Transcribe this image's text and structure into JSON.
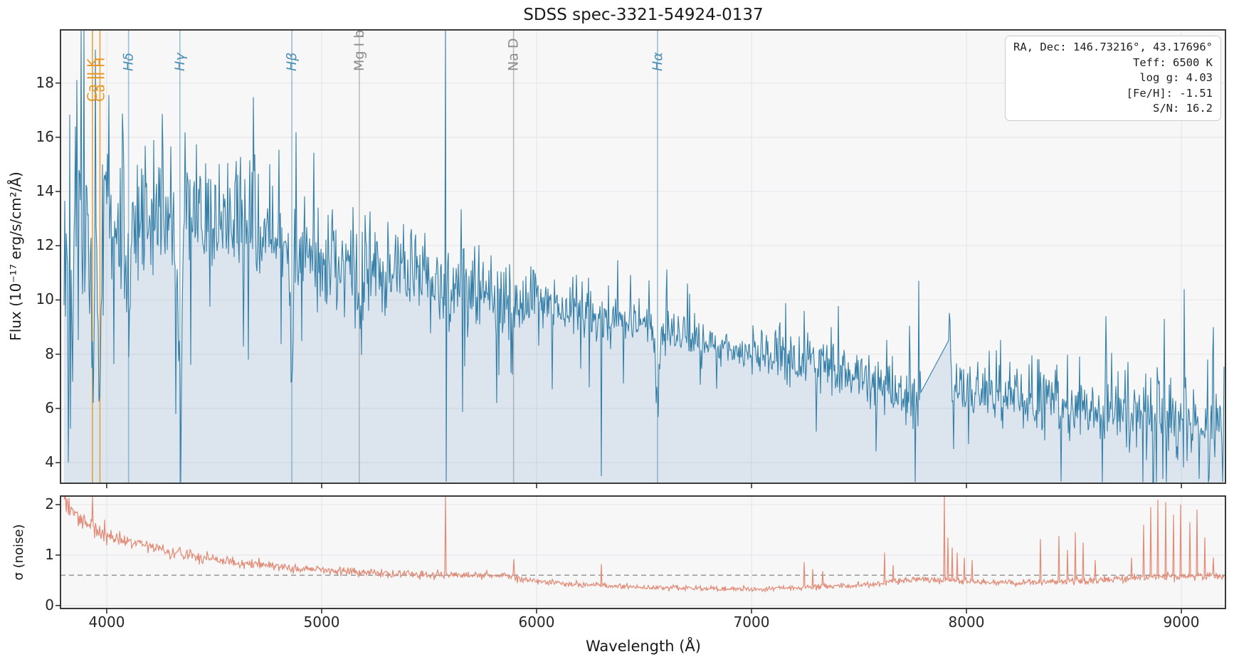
{
  "chart_data": {
    "type": "line",
    "title": "SDSS spec-3321-54924-0137",
    "xlabel": "Wavelength (Å)",
    "xlim": [
      3785,
      9205
    ],
    "xticks": [
      4000,
      5000,
      6000,
      7000,
      8000,
      9000
    ],
    "grid": true,
    "legend": "none",
    "info_box": {
      "lines": [
        "RA, Dec: 146.73216°, 43.17696°",
        "Teff: 6500 K",
        "log g: 4.03",
        "[Fe/H]: -1.51",
        "S/N: 16.2"
      ]
    },
    "spectral_lines": [
      {
        "label": "Ca II K",
        "wavelength": 3933.7,
        "color": "#e8941f",
        "group": "caii",
        "absorption_depth": 5.5,
        "width": 7
      },
      {
        "label": "Ca II H",
        "wavelength": 3968.5,
        "color": "#e8941f",
        "group": "caii",
        "absorption_depth": 5.0,
        "width": 7
      },
      {
        "label": "Hδ",
        "wavelength": 4101.7,
        "color": "#4f90b5",
        "group": "balmer",
        "absorption_depth": 4.5,
        "width": 8
      },
      {
        "label": "Hγ",
        "wavelength": 4340.5,
        "color": "#4f90b5",
        "group": "balmer",
        "absorption_depth": 4.8,
        "width": 9
      },
      {
        "label": "Hβ",
        "wavelength": 4861.3,
        "color": "#4f90b5",
        "group": "balmer",
        "absorption_depth": 4.2,
        "width": 9
      },
      {
        "label": "Mg I b",
        "wavelength": 5175.0,
        "color": "#8c8c8c",
        "group": "metal",
        "absorption_depth": 1.6,
        "width": 12
      },
      {
        "label": "Na D",
        "wavelength": 5892.9,
        "color": "#8c8c8c",
        "group": "metal",
        "absorption_depth": 1.8,
        "width": 8
      },
      {
        "label": "Hα",
        "wavelength": 6562.8,
        "color": "#4f90b5",
        "group": "balmer",
        "absorption_depth": 3.2,
        "width": 8
      }
    ],
    "flux_panel": {
      "ylabel": "Flux (10⁻¹⁷ erg/s/cm²/Å)",
      "ylim": [
        3.24,
        19.96
      ],
      "yticks": [
        4,
        6,
        8,
        10,
        12,
        14,
        16,
        18
      ],
      "continuum": [
        [
          3800,
          12.4
        ],
        [
          3900,
          12.9
        ],
        [
          4000,
          13.2
        ],
        [
          4150,
          13.0
        ],
        [
          4300,
          13.05
        ],
        [
          4500,
          13.1
        ],
        [
          4650,
          12.8
        ],
        [
          4800,
          12.3
        ],
        [
          4900,
          11.9
        ],
        [
          5000,
          11.6
        ],
        [
          5200,
          11.15
        ],
        [
          5400,
          10.75
        ],
        [
          5600,
          10.45
        ],
        [
          5800,
          10.15
        ],
        [
          6000,
          9.9
        ],
        [
          6200,
          9.55
        ],
        [
          6400,
          9.2
        ],
        [
          6600,
          8.75
        ],
        [
          6800,
          8.4
        ],
        [
          7000,
          8.05
        ],
        [
          7200,
          7.75
        ],
        [
          7400,
          7.35
        ],
        [
          7600,
          6.95
        ],
        [
          7700,
          6.75
        ],
        [
          7785,
          6.55
        ],
        [
          7920,
          8.55
        ],
        [
          7935,
          7.0
        ],
        [
          8000,
          6.72
        ],
        [
          8200,
          6.45
        ],
        [
          8400,
          6.2
        ],
        [
          8600,
          5.95
        ],
        [
          8800,
          5.65
        ],
        [
          9000,
          5.35
        ],
        [
          9200,
          5.0
        ]
      ],
      "gap": {
        "from": 7785,
        "to": 7920,
        "flux_start": 6.55,
        "flux_end": 8.55
      },
      "spikes": [
        [
          5577,
          19.93
        ],
        [
          5581,
          3.3
        ],
        [
          6302,
          3.5
        ],
        [
          7246,
          9.6
        ],
        [
          7372,
          9.0
        ],
        [
          7735,
          9.05
        ],
        [
          7923,
          9.2
        ],
        [
          7940,
          4.5
        ],
        [
          8440,
          3.3
        ],
        [
          8650,
          9.4
        ],
        [
          8912,
          3.4
        ],
        [
          8920,
          9.3
        ],
        [
          9012,
          10.4
        ],
        [
          9082,
          3.4
        ],
        [
          9150,
          9.0
        ]
      ]
    },
    "noise_panel": {
      "ylabel": "σ (noise)",
      "ylim": [
        -0.06,
        2.17
      ],
      "yticks": [
        0,
        1,
        2
      ],
      "median_line": 0.6,
      "trend": [
        [
          3800,
          2.1
        ],
        [
          3850,
          1.85
        ],
        [
          3900,
          1.6
        ],
        [
          3950,
          1.5
        ],
        [
          4000,
          1.38
        ],
        [
          4100,
          1.27
        ],
        [
          4200,
          1.17
        ],
        [
          4300,
          1.07
        ],
        [
          4400,
          0.99
        ],
        [
          4500,
          0.92
        ],
        [
          4600,
          0.86
        ],
        [
          4700,
          0.81
        ],
        [
          4800,
          0.77
        ],
        [
          4900,
          0.73
        ],
        [
          5000,
          0.7
        ],
        [
          5100,
          0.675
        ],
        [
          5200,
          0.655
        ],
        [
          5300,
          0.635
        ],
        [
          5500,
          0.615
        ],
        [
          5700,
          0.6
        ],
        [
          5850,
          0.59
        ],
        [
          5900,
          0.55
        ],
        [
          6000,
          0.48
        ],
        [
          6100,
          0.44
        ],
        [
          6200,
          0.42
        ],
        [
          6300,
          0.4
        ],
        [
          6400,
          0.375
        ],
        [
          6500,
          0.36
        ],
        [
          6600,
          0.35
        ],
        [
          6700,
          0.34
        ],
        [
          6800,
          0.335
        ],
        [
          6900,
          0.33
        ],
        [
          7000,
          0.33
        ],
        [
          7100,
          0.34
        ],
        [
          7200,
          0.355
        ],
        [
          7300,
          0.375
        ],
        [
          7400,
          0.385
        ],
        [
          7500,
          0.4
        ],
        [
          7600,
          0.44
        ],
        [
          7700,
          0.5
        ],
        [
          7800,
          0.52
        ],
        [
          7900,
          0.5
        ],
        [
          8000,
          0.47
        ],
        [
          8100,
          0.455
        ],
        [
          8200,
          0.45
        ],
        [
          8300,
          0.46
        ],
        [
          8400,
          0.47
        ],
        [
          8500,
          0.48
        ],
        [
          8600,
          0.5
        ],
        [
          8700,
          0.52
        ],
        [
          8800,
          0.55
        ],
        [
          8900,
          0.57
        ],
        [
          9000,
          0.57
        ],
        [
          9100,
          0.58
        ],
        [
          9200,
          0.6
        ]
      ],
      "spikes": [
        [
          3935,
          2.25
        ],
        [
          3990,
          1.7
        ],
        [
          5577,
          2.5
        ],
        [
          5893,
          0.92
        ],
        [
          6302,
          0.82
        ],
        [
          7245,
          0.86
        ],
        [
          7285,
          0.72
        ],
        [
          7330,
          0.68
        ],
        [
          7618,
          1.05
        ],
        [
          7660,
          0.8
        ],
        [
          7898,
          2.5
        ],
        [
          7915,
          1.35
        ],
        [
          7932,
          1.15
        ],
        [
          7958,
          1.05
        ],
        [
          7990,
          0.95
        ],
        [
          8025,
          0.9
        ],
        [
          8345,
          1.32
        ],
        [
          8430,
          1.38
        ],
        [
          8470,
          1.1
        ],
        [
          8505,
          1.45
        ],
        [
          8542,
          1.25
        ],
        [
          8600,
          0.9
        ],
        [
          8768,
          0.95
        ],
        [
          8825,
          1.6
        ],
        [
          8858,
          1.95
        ],
        [
          8892,
          2.1
        ],
        [
          8928,
          2.05
        ],
        [
          8962,
          1.8
        ],
        [
          8998,
          2.0
        ],
        [
          9038,
          1.65
        ],
        [
          9072,
          1.9
        ],
        [
          9108,
          1.35
        ],
        [
          9148,
          0.95
        ]
      ]
    },
    "colors": {
      "flux_line": "#357fa8",
      "flux_fill": "#4682b4",
      "noise_line": "#e28b76",
      "median_dash": "#999999",
      "axes_bg": "#f7f7f8",
      "grid": "#e7e7ea",
      "spine": "#262626",
      "text": "#262626"
    }
  }
}
